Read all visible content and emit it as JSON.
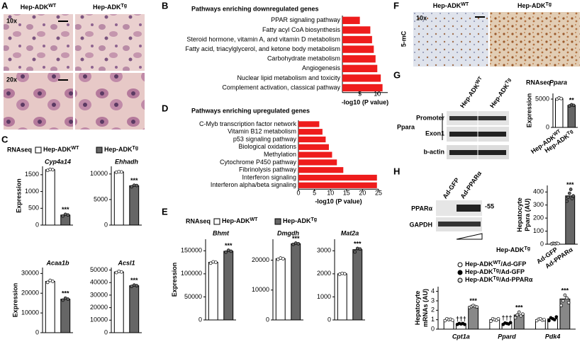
{
  "panels": {
    "A": {
      "letter": "A",
      "headers": [
        [
          "Hep-ADK",
          "WT"
        ],
        [
          "Hep-ADK",
          "Tg"
        ]
      ],
      "mags": [
        "10x",
        "20x"
      ]
    },
    "B": {
      "letter": "B"
    },
    "C": {
      "letter": "C",
      "method": "RNAseq",
      "legend": [
        {
          "name": [
            "Hep-ADK",
            "WT"
          ],
          "color": "#ffffff"
        },
        {
          "name": [
            "Hep-ADK",
            "Tg"
          ],
          "color": "#666666"
        }
      ]
    },
    "D": {
      "letter": "D"
    },
    "E": {
      "letter": "E",
      "method": "RNAseq",
      "legend": [
        {
          "name": [
            "Hep-ADK",
            "WT"
          ],
          "color": "#ffffff"
        },
        {
          "name": [
            "Hep-ADK",
            "Tg"
          ],
          "color": "#666666"
        }
      ]
    },
    "F": {
      "letter": "F",
      "headers": [
        [
          "Hep-ADK",
          "WT"
        ],
        [
          "Hep-ADK",
          "Tg"
        ]
      ],
      "mag": "10x",
      "stain": "5-mC"
    },
    "G": {
      "letter": "G",
      "headers": [
        [
          "Hep-ADK",
          "WT"
        ],
        [
          "Hep-ADK",
          "Tg"
        ]
      ],
      "gene": "Ppara",
      "rows": [
        "Promoter",
        "Exon1",
        "b-actin"
      ],
      "method": "RNAseq"
    },
    "H": {
      "letter": "H",
      "lanes": [
        "Ad-GFP",
        "Ad-PPARα"
      ],
      "rows": [
        "PPARα",
        "GAPDH"
      ],
      "marker": "-55",
      "group": [
        "Hep-ADK",
        "Tg"
      ]
    }
  },
  "chart_data": [
    {
      "type": "hbar",
      "title": "Pathways enriching downregulated genes",
      "categories": [
        "PPAR signaling pathway",
        "Fatty acyl CoA biosynthesis",
        "Steroid hormone, vitamin A, and vitamin D metabolism",
        "Fatty acid, triacylglycerol, and ketone body metabolism",
        "Carbohydrate metabolism",
        "Angiogenesis",
        "Nuclear lipid metabolism and toxicity",
        "Complement activation, classical pathway"
      ],
      "values": [
        5,
        8,
        8.5,
        9,
        9.5,
        10,
        11,
        11.5
      ],
      "color": "#ee1c1c",
      "xlabel": "-log10 (P value)",
      "xlim": [
        0,
        13
      ],
      "xticks": [
        5,
        10
      ]
    },
    {
      "type": "hbar",
      "title": "Pathways enriching upregulated genes",
      "categories": [
        "C-Myb transcription factor network",
        "Vitamin B12 metabolism",
        "p53 signaling pathway",
        "Biological oxidations",
        "Methylation",
        "Cytochrome P450 pathway",
        "Fibrinolysis pathway",
        "Interferon signaling",
        "Interferon alpha/beta signaling"
      ],
      "values": [
        6.5,
        7.5,
        8.5,
        9.5,
        10.5,
        12,
        14,
        24.5,
        24.5
      ],
      "color": "#ee1c1c",
      "xlabel": "-log10 (P value)",
      "xlim": [
        0,
        25
      ],
      "xticks": [
        0,
        5,
        10,
        15,
        20,
        25
      ]
    },
    {
      "type": "bar",
      "title": "Cyp4a14",
      "ylabel": [
        "Expression"
      ],
      "values": [
        1650,
        300
      ],
      "colors": [
        "#ffffff",
        "#666666"
      ],
      "points": [
        [
          1630,
          1660,
          1650
        ],
        [
          270,
          320,
          300
        ]
      ],
      "annotations": [
        null,
        "***"
      ],
      "ylim": [
        0,
        1750
      ],
      "yticks": [
        0,
        500,
        1000,
        1500
      ]
    },
    {
      "type": "bar",
      "title": "Ehhadh",
      "values": [
        10400,
        7700
      ],
      "colors": [
        "#ffffff",
        "#666666"
      ],
      "points": [
        [
          10350,
          10450,
          10400
        ],
        [
          7500,
          7800,
          7750
        ]
      ],
      "annotations": [
        null,
        "***"
      ],
      "ylim": [
        0,
        11500
      ],
      "yticks": [
        0,
        5000,
        10000
      ]
    },
    {
      "type": "bar",
      "title": "Acaa1b",
      "ylabel": [
        "Expression"
      ],
      "values": [
        26000,
        17000
      ],
      "colors": [
        "#ffffff",
        "#666666"
      ],
      "points": [
        [
          25500,
          26500,
          26000
        ],
        [
          16500,
          17500,
          17000
        ]
      ],
      "annotations": [
        null,
        "***"
      ],
      "ylim": [
        0,
        33000
      ],
      "yticks": [
        0,
        10000,
        20000,
        30000
      ]
    },
    {
      "type": "bar",
      "title": "Acsl1",
      "values": [
        48500,
        37500
      ],
      "colors": [
        "#ffffff",
        "#666666"
      ],
      "points": [
        [
          48000,
          49000,
          48500
        ],
        [
          37000,
          38000,
          37500
        ]
      ],
      "annotations": [
        null,
        "***"
      ],
      "ylim": [
        0,
        52000
      ],
      "yticks": [
        0,
        10000,
        20000,
        30000,
        40000,
        50000
      ]
    },
    {
      "type": "bar",
      "title": "Bhmt",
      "ylabel": [
        "Expression"
      ],
      "values": [
        125000,
        149000
      ],
      "colors": [
        "#ffffff",
        "#666666"
      ],
      "points": [
        [
          123000,
          126000,
          125000
        ],
        [
          147000,
          151000,
          149000
        ]
      ],
      "annotations": [
        null,
        "***"
      ],
      "ylim": [
        0,
        175000
      ],
      "yticks": [
        0,
        50000,
        100000,
        150000
      ]
    },
    {
      "type": "bar",
      "title": "Dmgdh",
      "values": [
        20500,
        25500
      ],
      "colors": [
        "#ffffff",
        "#666666"
      ],
      "points": [
        [
          20300,
          20700,
          20500
        ],
        [
          25300,
          25700,
          25500
        ]
      ],
      "annotations": [
        null,
        "***"
      ],
      "ylim": [
        0,
        27000
      ],
      "yticks": [
        0,
        10000,
        20000
      ]
    },
    {
      "type": "bar",
      "title": "Mat2a",
      "values": [
        2000,
        3050
      ],
      "colors": [
        "#ffffff",
        "#666666"
      ],
      "points": [
        [
          1980,
          2020,
          2000
        ],
        [
          2950,
          3100,
          3080
        ]
      ],
      "annotations": [
        null,
        "***"
      ],
      "ylim": [
        0,
        3500
      ],
      "yticks": [
        0,
        1000,
        2000,
        3000
      ]
    },
    {
      "type": "bar",
      "title": "Ppara",
      "ylabel": [
        "Expression"
      ],
      "categories": [
        [
          "Hep-ADK",
          "WT"
        ],
        [
          "Hep-ADK",
          "Tg"
        ]
      ],
      "values": [
        5100,
        3900
      ],
      "colors": [
        "#ffffff",
        "#666666"
      ],
      "points": [
        [
          5000,
          5200,
          5100
        ],
        [
          3800,
          4000,
          3900
        ]
      ],
      "annotations": [
        null,
        "**"
      ],
      "ylim": [
        0,
        6000
      ],
      "yticks": [
        0,
        5000
      ]
    },
    {
      "type": "bar",
      "ylabel": [
        "Hepatocyte",
        "Ppara (AU)"
      ],
      "categories": [
        "Ad-GFP",
        "Ad-PPARα"
      ],
      "values": [
        5,
        370
      ],
      "colors": [
        "#ffffff",
        "#666666"
      ],
      "points": [
        [
          3,
          6,
          5,
          4,
          7,
          5
        ],
        [
          330,
          360,
          390,
          420,
          350,
          370
        ]
      ],
      "annotations": [
        null,
        "***"
      ],
      "ylim": [
        0,
        450
      ],
      "yticks": [
        0,
        100,
        200,
        300,
        400
      ]
    },
    {
      "type": "grouped",
      "ylabel": [
        "Hepatocyte",
        "mRNAs (AU)"
      ],
      "categories": [
        "Cpt1a",
        "Ppard",
        "Pdk4"
      ],
      "series": [
        {
          "name": [
            "Hep-ADK",
            "WT",
            "/Ad-GFP"
          ],
          "color": "#ffffff",
          "marker_color": "#ffffff",
          "values": [
            1,
            1,
            1
          ],
          "points": [
            [
              0.9,
              1.1,
              1.0,
              1.05,
              0.95
            ],
            [
              0.85,
              1.1,
              1.0,
              0.95,
              1.1
            ],
            [
              0.9,
              1.05,
              1.1,
              0.95,
              1.0
            ]
          ],
          "annotations": [
            null,
            null,
            null
          ]
        },
        {
          "name": [
            "Hep-ADK",
            "Tg",
            "/Ad-GFP"
          ],
          "color": "#ffffff",
          "marker_color": "#000000",
          "values": [
            0.55,
            0.6,
            1.1
          ],
          "points": [
            [
              0.5,
              0.6,
              0.55,
              0.6,
              0.5
            ],
            [
              0.5,
              0.65,
              0.6,
              0.55,
              0.7
            ],
            [
              0.9,
              1.2,
              1.1,
              1.0,
              1.3
            ]
          ],
          "annotations": [
            "†††",
            "†††",
            null
          ]
        },
        {
          "name": [
            "Hep-ADK",
            "Tg",
            "/Ad-PPARα"
          ],
          "color": "#888888",
          "marker_color": "#dddddd",
          "values": [
            2.4,
            1.5,
            3.2
          ],
          "points": [
            [
              2.3,
              2.4,
              2.5,
              2.4,
              2.35
            ],
            [
              1.2,
              1.5,
              1.8,
              1.4,
              1.6
            ],
            [
              2.5,
              3.0,
              3.6,
              3.3,
              2.8
            ]
          ],
          "annotations": [
            "***",
            "***",
            "***"
          ]
        }
      ],
      "ylim": [
        0,
        4.5
      ],
      "yticks": [
        0,
        1,
        2,
        3,
        4
      ]
    }
  ]
}
